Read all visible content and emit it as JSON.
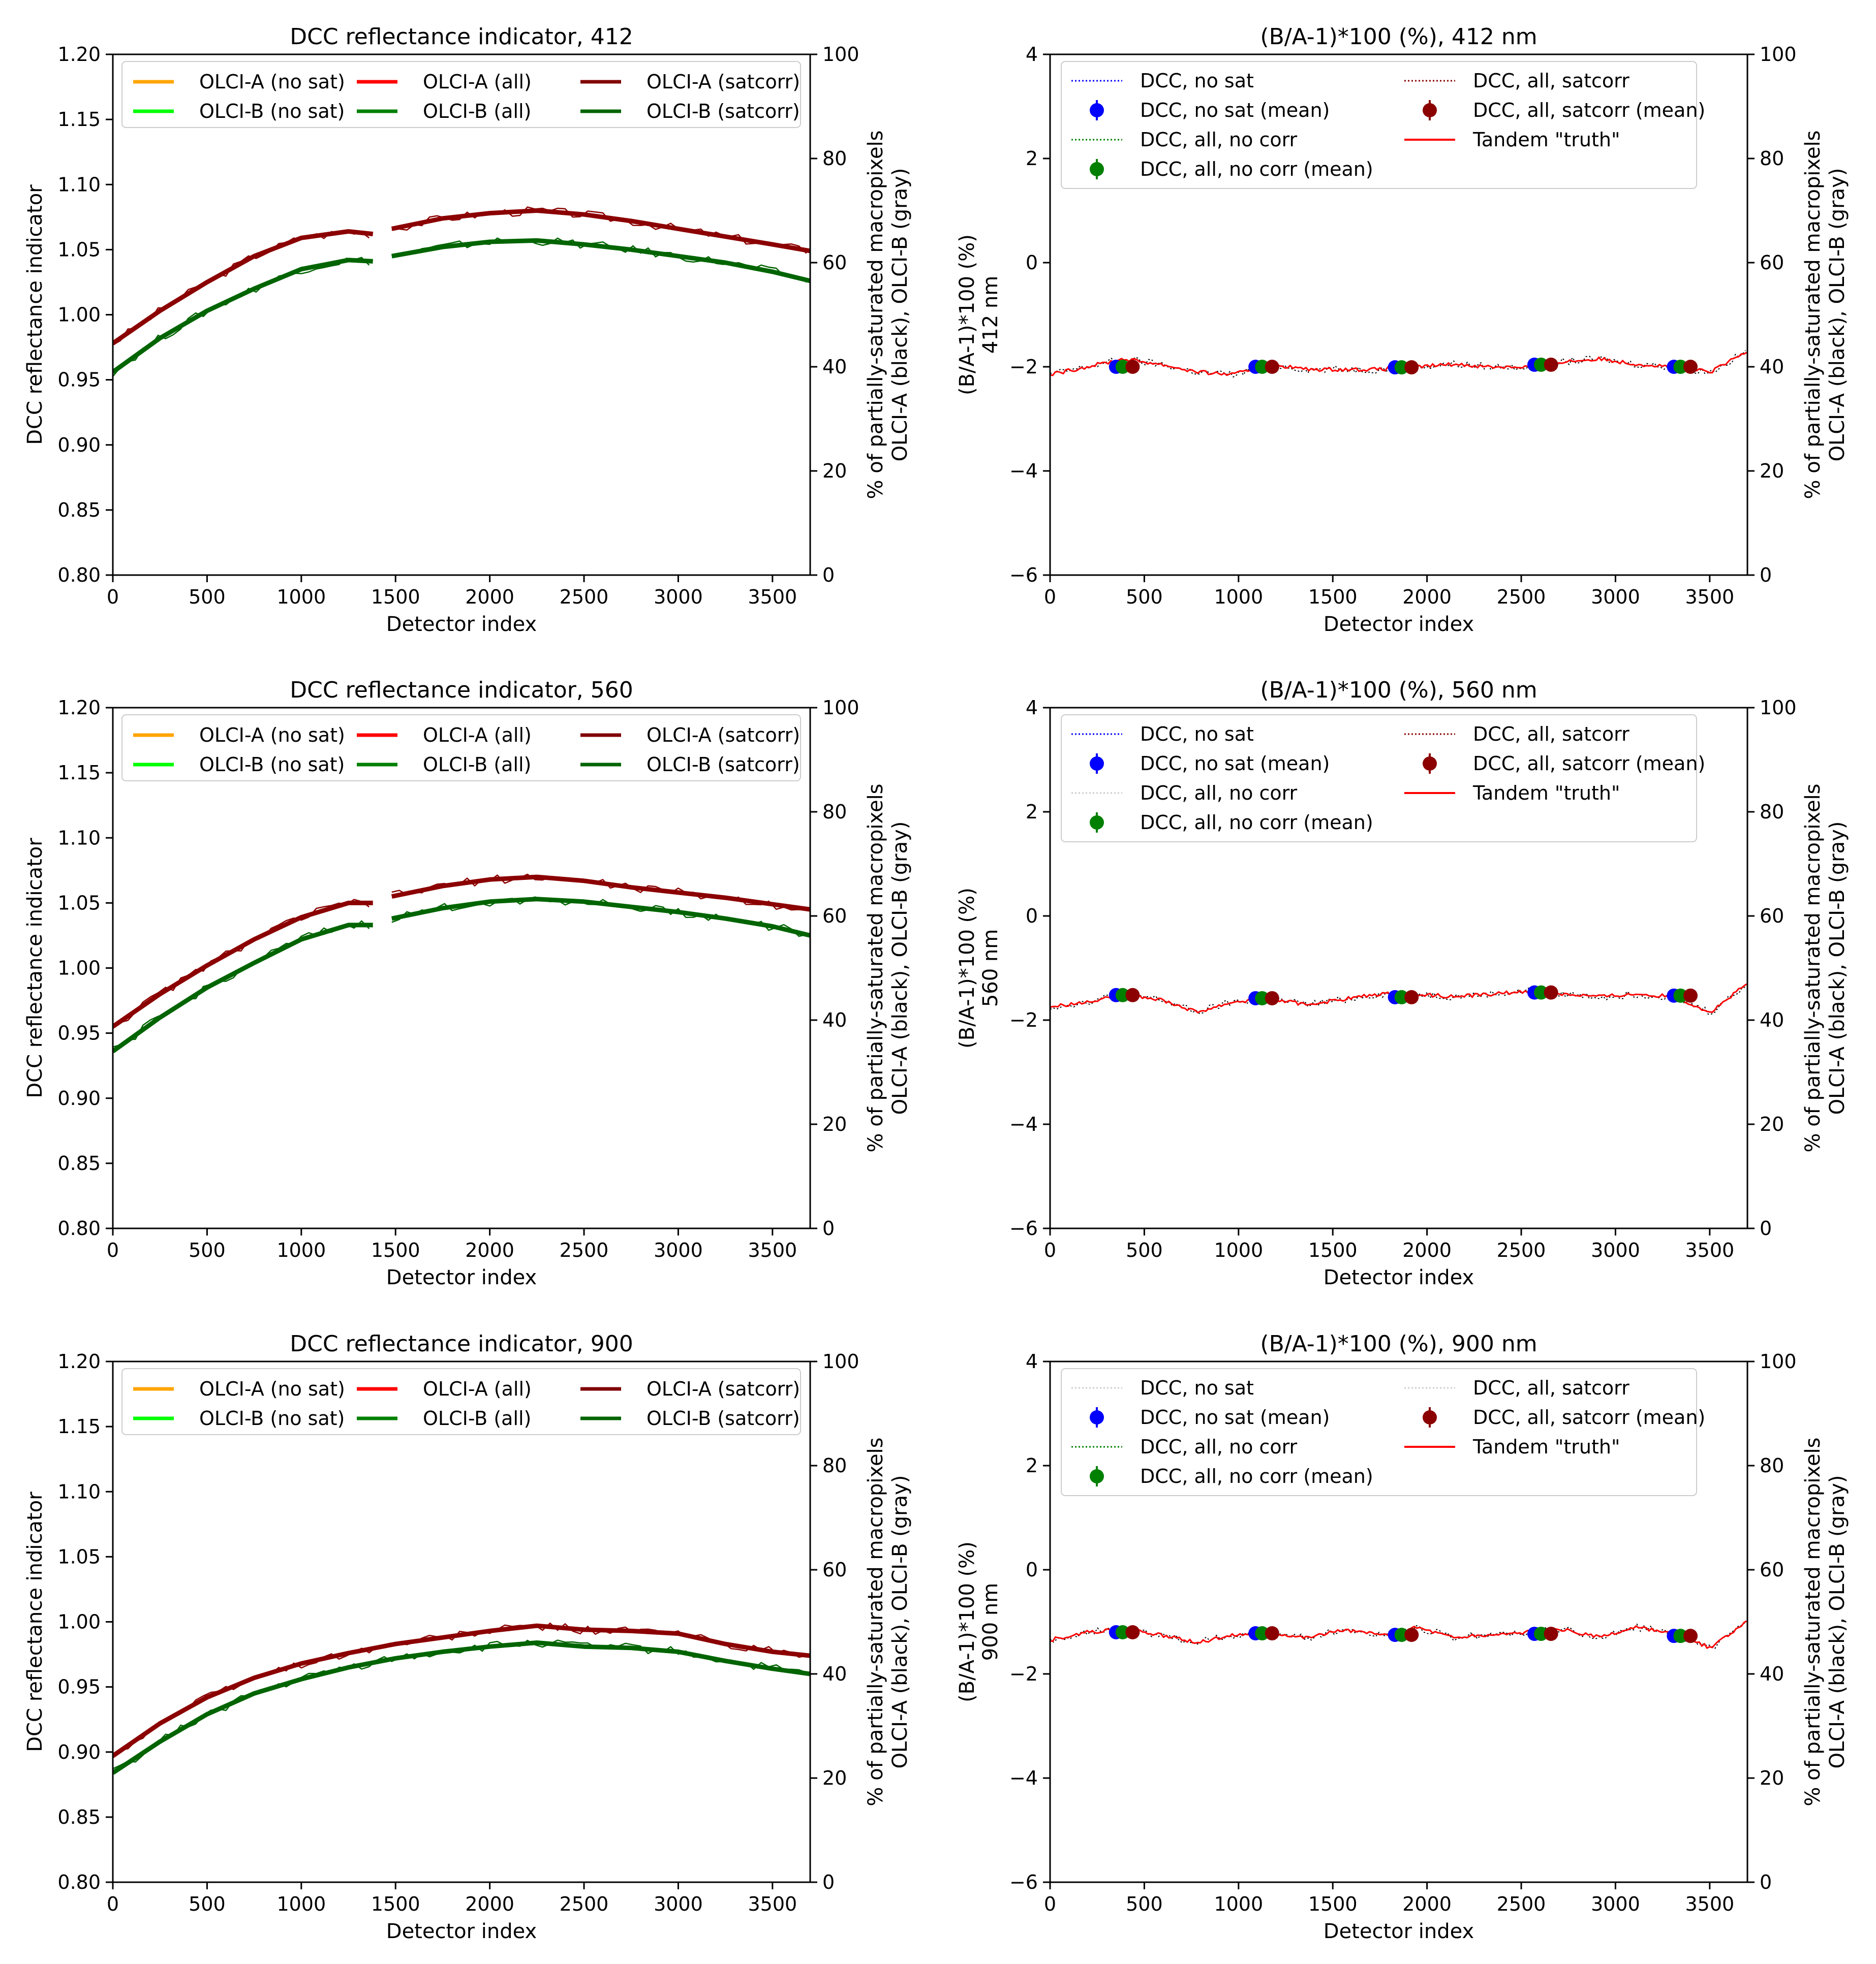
{
  "chart_data": [
    {
      "id": "dcc-412",
      "type": "line",
      "title": "DCC reflectance indicator, 412",
      "xlabel": "Detector index",
      "ylabel": "DCC reflectance indicator",
      "y2label_line1": "% of partially-saturated macropixels",
      "y2label_line2": "OLCI-A (black), OLCI-B (gray)",
      "xlim": [
        0,
        3700
      ],
      "ylim": [
        0.8,
        1.2
      ],
      "y2lim": [
        0,
        100
      ],
      "xticks": [
        "0",
        "500",
        "1000",
        "1500",
        "2000",
        "2500",
        "3000",
        "3500"
      ],
      "yticks": [
        "0.80",
        "0.85",
        "0.90",
        "0.95",
        "1.00",
        "1.05",
        "1.10",
        "1.15",
        "1.20"
      ],
      "y2ticks": [
        "0",
        "20",
        "40",
        "60",
        "80",
        "100"
      ],
      "legend": [
        {
          "label": "OLCI-A (no sat)",
          "color": "#ffa500"
        },
        {
          "label": "OLCI-B (no sat)",
          "color": "#00ff00"
        },
        {
          "label": "OLCI-A (all)",
          "color": "#ff0000"
        },
        {
          "label": "OLCI-B (all)",
          "color": "#008000"
        },
        {
          "label": "OLCI-A (satcorr)",
          "color": "#800000"
        },
        {
          "label": "OLCI-B (satcorr)",
          "color": "#006400"
        }
      ],
      "series": [
        {
          "name": "OLCI-A (satcorr)",
          "color": "#8b0000",
          "segments": [
            {
              "x": [
                0,
                250,
                500,
                750,
                1000,
                1250,
                1380
              ],
              "y": [
                0.978,
                1.003,
                1.025,
                1.045,
                1.059,
                1.064,
                1.062
              ]
            },
            {
              "x": [
                1480,
                1750,
                2000,
                2250,
                2500,
                2750,
                3000,
                3250,
                3500,
                3700
              ],
              "y": [
                1.066,
                1.074,
                1.078,
                1.08,
                1.077,
                1.072,
                1.066,
                1.06,
                1.054,
                1.049
              ]
            }
          ]
        },
        {
          "name": "OLCI-B (satcorr)",
          "color": "#006400",
          "segments": [
            {
              "x": [
                0,
                250,
                500,
                750,
                1000,
                1250,
                1380
              ],
              "y": [
                0.956,
                0.982,
                1.003,
                1.02,
                1.035,
                1.042,
                1.041
              ]
            },
            {
              "x": [
                1480,
                1750,
                2000,
                2250,
                2500,
                2750,
                3000,
                3250,
                3500,
                3700
              ],
              "y": [
                1.045,
                1.052,
                1.056,
                1.057,
                1.054,
                1.05,
                1.045,
                1.04,
                1.033,
                1.026
              ]
            }
          ]
        }
      ]
    },
    {
      "id": "ratio-412",
      "type": "line",
      "title": "(B/A-1)*100 (%), 412 nm",
      "xlabel": "Detector index",
      "ylabel_line1": "(B/A-1)*100 (%)",
      "ylabel_line2": "412 nm",
      "y2label_line1": "% of partially-saturated macropixels",
      "y2label_line2": "OLCI-A (black), OLCI-B (gray)",
      "xlim": [
        0,
        3700
      ],
      "ylim": [
        -6,
        4
      ],
      "y2lim": [
        0,
        100
      ],
      "xticks": [
        "0",
        "500",
        "1000",
        "1500",
        "2000",
        "2500",
        "3000",
        "3500"
      ],
      "yticks": [
        "−6",
        "−4",
        "−2",
        "0",
        "2",
        "4"
      ],
      "y2ticks": [
        "0",
        "20",
        "40",
        "60",
        "80",
        "100"
      ],
      "legend": [
        {
          "label": "DCC, no sat",
          "kind": "dotted",
          "color": "#0000ff"
        },
        {
          "label": "DCC, no sat (mean)",
          "kind": "marker",
          "color": "#0000ff"
        },
        {
          "label": "DCC, all, no corr",
          "kind": "dotted",
          "color": "#008000"
        },
        {
          "label": "DCC, all, no corr (mean)",
          "kind": "marker",
          "color": "#008000"
        },
        {
          "label": "DCC, all, satcorr",
          "kind": "dotted",
          "color": "#8b0000"
        },
        {
          "label": "DCC, all, satcorr (mean)",
          "kind": "marker",
          "color": "#8b0000"
        },
        {
          "label": "Tandem \"truth\"",
          "kind": "line",
          "color": "#ff0000"
        }
      ],
      "truth": [
        -2.15,
        -2.0,
        -1.85,
        -1.95,
        -2.1,
        -2.15,
        -1.95,
        -2.05,
        -2.05,
        -2.05,
        -2.0,
        -1.95,
        -2.0,
        -2.0,
        -1.9,
        -1.85,
        -1.95,
        -2.0,
        -2.1,
        -1.7
      ],
      "means": [
        {
          "x": 350,
          "y": -2.0
        },
        {
          "x": 1090,
          "y": -2.0
        },
        {
          "x": 1830,
          "y": -2.01
        },
        {
          "x": 2570,
          "y": -1.96
        },
        {
          "x": 3310,
          "y": -2.0
        }
      ]
    },
    {
      "id": "dcc-560",
      "type": "line",
      "title": "DCC reflectance indicator, 560",
      "xlabel": "Detector index",
      "ylabel": "DCC reflectance indicator",
      "y2label_line1": "% of partially-saturated macropixels",
      "y2label_line2": "OLCI-A (black), OLCI-B (gray)",
      "xlim": [
        0,
        3700
      ],
      "ylim": [
        0.8,
        1.2
      ],
      "y2lim": [
        0,
        100
      ],
      "xticks": [
        "0",
        "500",
        "1000",
        "1500",
        "2000",
        "2500",
        "3000",
        "3500"
      ],
      "yticks": [
        "0.80",
        "0.85",
        "0.90",
        "0.95",
        "1.00",
        "1.05",
        "1.10",
        "1.15",
        "1.20"
      ],
      "y2ticks": [
        "0",
        "20",
        "40",
        "60",
        "80",
        "100"
      ],
      "legend": [
        {
          "label": "OLCI-A (no sat)",
          "color": "#ffa500"
        },
        {
          "label": "OLCI-B (no sat)",
          "color": "#00ff00"
        },
        {
          "label": "OLCI-A (all)",
          "color": "#ff0000"
        },
        {
          "label": "OLCI-B (all)",
          "color": "#008000"
        },
        {
          "label": "OLCI-A (satcorr)",
          "color": "#800000"
        },
        {
          "label": "OLCI-B (satcorr)",
          "color": "#006400"
        }
      ],
      "series": [
        {
          "name": "OLCI-A (satcorr)",
          "color": "#8b0000",
          "segments": [
            {
              "x": [
                0,
                250,
                500,
                750,
                1000,
                1250,
                1380
              ],
              "y": [
                0.955,
                0.98,
                1.002,
                1.022,
                1.039,
                1.05,
                1.05
              ]
            },
            {
              "x": [
                1480,
                1750,
                2000,
                2250,
                2500,
                2750,
                3000,
                3250,
                3500,
                3700
              ],
              "y": [
                1.055,
                1.063,
                1.068,
                1.07,
                1.067,
                1.062,
                1.058,
                1.054,
                1.049,
                1.045
              ]
            }
          ]
        },
        {
          "name": "OLCI-B (satcorr)",
          "color": "#006400",
          "segments": [
            {
              "x": [
                0,
                250,
                500,
                750,
                1000,
                1250,
                1380
              ],
              "y": [
                0.936,
                0.962,
                0.985,
                1.004,
                1.022,
                1.033,
                1.033
              ]
            },
            {
              "x": [
                1480,
                1750,
                2000,
                2250,
                2500,
                2750,
                3000,
                3250,
                3500,
                3700
              ],
              "y": [
                1.038,
                1.046,
                1.051,
                1.053,
                1.051,
                1.047,
                1.043,
                1.038,
                1.032,
                1.025
              ]
            }
          ]
        }
      ]
    },
    {
      "id": "ratio-560",
      "type": "line",
      "title": "(B/A-1)*100 (%), 560 nm",
      "xlabel": "Detector index",
      "ylabel_line1": "(B/A-1)*100 (%)",
      "ylabel_line2": "560 nm",
      "y2label_line1": "% of partially-saturated macropixels",
      "y2label_line2": "OLCI-A (black), OLCI-B (gray)",
      "xlim": [
        0,
        3700
      ],
      "ylim": [
        -6,
        4
      ],
      "y2lim": [
        0,
        100
      ],
      "xticks": [
        "0",
        "500",
        "1000",
        "1500",
        "2000",
        "2500",
        "3000",
        "3500"
      ],
      "yticks": [
        "−6",
        "−4",
        "−2",
        "0",
        "2",
        "4"
      ],
      "y2ticks": [
        "0",
        "20",
        "40",
        "60",
        "80",
        "100"
      ],
      "legend": [
        {
          "label": "DCC, no sat",
          "kind": "dotted",
          "color": "#0000ff"
        },
        {
          "label": "DCC, no sat (mean)",
          "kind": "marker",
          "color": "#0000ff"
        },
        {
          "label": "DCC, all, no corr",
          "kind": "dotted",
          "color": "#cccccc"
        },
        {
          "label": "DCC, all, no corr (mean)",
          "kind": "marker",
          "color": "#008000"
        },
        {
          "label": "DCC, all, satcorr",
          "kind": "dotted",
          "color": "#8b0000"
        },
        {
          "label": "DCC, all, satcorr (mean)",
          "kind": "marker",
          "color": "#8b0000"
        },
        {
          "label": "Tandem \"truth\"",
          "kind": "line",
          "color": "#ff0000"
        }
      ],
      "truth": [
        -1.75,
        -1.65,
        -1.5,
        -1.6,
        -1.85,
        -1.65,
        -1.6,
        -1.7,
        -1.6,
        -1.5,
        -1.5,
        -1.55,
        -1.5,
        -1.45,
        -1.5,
        -1.55,
        -1.5,
        -1.55,
        -1.85,
        -1.3
      ],
      "means": [
        {
          "x": 350,
          "y": -1.52
        },
        {
          "x": 1090,
          "y": -1.58
        },
        {
          "x": 1830,
          "y": -1.56
        },
        {
          "x": 2570,
          "y": -1.47
        },
        {
          "x": 3310,
          "y": -1.53
        }
      ]
    },
    {
      "id": "dcc-900",
      "type": "line",
      "title": "DCC reflectance indicator, 900",
      "xlabel": "Detector index",
      "ylabel": "DCC reflectance indicator",
      "y2label_line1": "% of partially-saturated macropixels",
      "y2label_line2": "OLCI-A (black), OLCI-B (gray)",
      "xlim": [
        0,
        3700
      ],
      "ylim": [
        0.8,
        1.2
      ],
      "y2lim": [
        0,
        100
      ],
      "xticks": [
        "0",
        "500",
        "1000",
        "1500",
        "2000",
        "2500",
        "3000",
        "3500"
      ],
      "yticks": [
        "0.80",
        "0.85",
        "0.90",
        "0.95",
        "1.00",
        "1.05",
        "1.10",
        "1.15",
        "1.20"
      ],
      "y2ticks": [
        "0",
        "20",
        "40",
        "60",
        "80",
        "100"
      ],
      "legend": [
        {
          "label": "OLCI-A (no sat)",
          "color": "#ffa500"
        },
        {
          "label": "OLCI-B (no sat)",
          "color": "#00ff00"
        },
        {
          "label": "OLCI-A (all)",
          "color": "#ff0000"
        },
        {
          "label": "OLCI-B (all)",
          "color": "#008000"
        },
        {
          "label": "OLCI-A (satcorr)",
          "color": "#800000"
        },
        {
          "label": "OLCI-B (satcorr)",
          "color": "#006400"
        }
      ],
      "series": [
        {
          "name": "OLCI-A (satcorr)",
          "color": "#8b0000",
          "segments": [
            {
              "x": [
                0,
                250,
                500,
                750,
                1000,
                1250,
                1500,
                1750,
                2000,
                2250,
                2500,
                2750,
                3000,
                3250,
                3500,
                3700
              ],
              "y": [
                0.897,
                0.922,
                0.942,
                0.957,
                0.968,
                0.976,
                0.983,
                0.988,
                0.993,
                0.997,
                0.994,
                0.993,
                0.991,
                0.983,
                0.977,
                0.974
              ]
            }
          ]
        },
        {
          "name": "OLCI-B (satcorr)",
          "color": "#006400",
          "segments": [
            {
              "x": [
                0,
                250,
                500,
                750,
                1000,
                1250,
                1500,
                1750,
                2000,
                2250,
                2500,
                2750,
                3000,
                3250,
                3500,
                3700
              ],
              "y": [
                0.884,
                0.908,
                0.929,
                0.945,
                0.956,
                0.965,
                0.972,
                0.977,
                0.981,
                0.984,
                0.981,
                0.98,
                0.977,
                0.97,
                0.964,
                0.96
              ]
            }
          ]
        }
      ]
    },
    {
      "id": "ratio-900",
      "type": "line",
      "title": "(B/A-1)*100 (%), 900 nm",
      "xlabel": "Detector index",
      "ylabel_line1": "(B/A-1)*100 (%)",
      "ylabel_line2": "900 nm",
      "y2label_line1": "% of partially-saturated macropixels",
      "y2label_line2": "OLCI-A (black), OLCI-B (gray)",
      "xlim": [
        0,
        3700
      ],
      "ylim": [
        -6,
        4
      ],
      "y2lim": [
        0,
        100
      ],
      "xticks": [
        "0",
        "500",
        "1000",
        "1500",
        "2000",
        "2500",
        "3000",
        "3500"
      ],
      "yticks": [
        "−6",
        "−4",
        "−2",
        "0",
        "2",
        "4"
      ],
      "y2ticks": [
        "0",
        "20",
        "40",
        "60",
        "80",
        "100"
      ],
      "legend": [
        {
          "label": "DCC, no sat",
          "kind": "dotted",
          "color": "#cccccc"
        },
        {
          "label": "DCC, no sat (mean)",
          "kind": "marker",
          "color": "#0000ff"
        },
        {
          "label": "DCC, all, no corr",
          "kind": "dotted",
          "color": "#008000"
        },
        {
          "label": "DCC, all, no corr (mean)",
          "kind": "marker",
          "color": "#008000"
        },
        {
          "label": "DCC, all, satcorr",
          "kind": "dotted",
          "color": "#cccccc"
        },
        {
          "label": "DCC, all, satcorr (mean)",
          "kind": "marker",
          "color": "#8b0000"
        },
        {
          "label": "Tandem \"truth\"",
          "kind": "line",
          "color": "#ff0000"
        }
      ],
      "truth": [
        -1.35,
        -1.2,
        -1.15,
        -1.25,
        -1.4,
        -1.25,
        -1.2,
        -1.3,
        -1.15,
        -1.25,
        -1.1,
        -1.3,
        -1.25,
        -1.2,
        -1.15,
        -1.3,
        -1.1,
        -1.25,
        -1.5,
        -1.0
      ],
      "means": [
        {
          "x": 350,
          "y": -1.2
        },
        {
          "x": 1090,
          "y": -1.22
        },
        {
          "x": 1830,
          "y": -1.25
        },
        {
          "x": 2570,
          "y": -1.23
        },
        {
          "x": 3310,
          "y": -1.27
        }
      ]
    }
  ]
}
